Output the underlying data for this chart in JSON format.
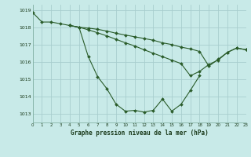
{
  "title": "Graphe pression niveau de la mer (hPa)",
  "bg_color": "#c8eae8",
  "grid_color": "#a8cece",
  "line_color": "#2a5c2a",
  "xlim": [
    0,
    23
  ],
  "ylim": [
    1012.5,
    1019.3
  ],
  "yticks": [
    1013,
    1014,
    1015,
    1016,
    1017,
    1018,
    1019
  ],
  "xticks": [
    0,
    1,
    2,
    3,
    4,
    5,
    6,
    7,
    8,
    9,
    10,
    11,
    12,
    13,
    14,
    15,
    16,
    17,
    18,
    19,
    20,
    21,
    22,
    23
  ],
  "series": [
    {
      "x": [
        0,
        1,
        2,
        3,
        4,
        5,
        6,
        7,
        8,
        9,
        10,
        11,
        12,
        13,
        14,
        15,
        16,
        17,
        18
      ],
      "y": [
        1018.85,
        1018.3,
        1018.3,
        1018.2,
        1018.1,
        1018.0,
        1016.3,
        1015.15,
        1014.45,
        1013.55,
        1013.15,
        1013.2,
        1013.1,
        1013.2,
        1013.85,
        1013.15,
        1013.55,
        1014.35,
        1015.2
      ]
    },
    {
      "x": [
        4,
        5,
        6,
        7,
        8,
        9,
        10,
        11,
        12,
        13,
        14,
        15,
        16,
        17,
        18,
        19,
        20,
        21,
        22,
        23
      ],
      "y": [
        1018.1,
        1018.0,
        1017.95,
        1017.88,
        1017.78,
        1017.65,
        1017.55,
        1017.45,
        1017.35,
        1017.25,
        1017.1,
        1017.0,
        1016.85,
        1016.75,
        1016.6,
        1015.75,
        1016.15,
        1016.55,
        1016.8,
        1016.7
      ]
    },
    {
      "x": [
        4,
        5,
        6,
        7,
        8,
        9,
        10,
        11,
        12,
        13,
        14,
        15,
        16,
        17,
        18,
        19,
        20,
        21,
        22,
        23
      ],
      "y": [
        1018.1,
        1018.0,
        1017.85,
        1017.68,
        1017.5,
        1017.3,
        1017.1,
        1016.92,
        1016.7,
        1016.5,
        1016.3,
        1016.1,
        1015.9,
        1015.2,
        1015.45,
        1015.85,
        1016.1,
        1016.55,
        1016.8,
        1016.7
      ]
    }
  ]
}
